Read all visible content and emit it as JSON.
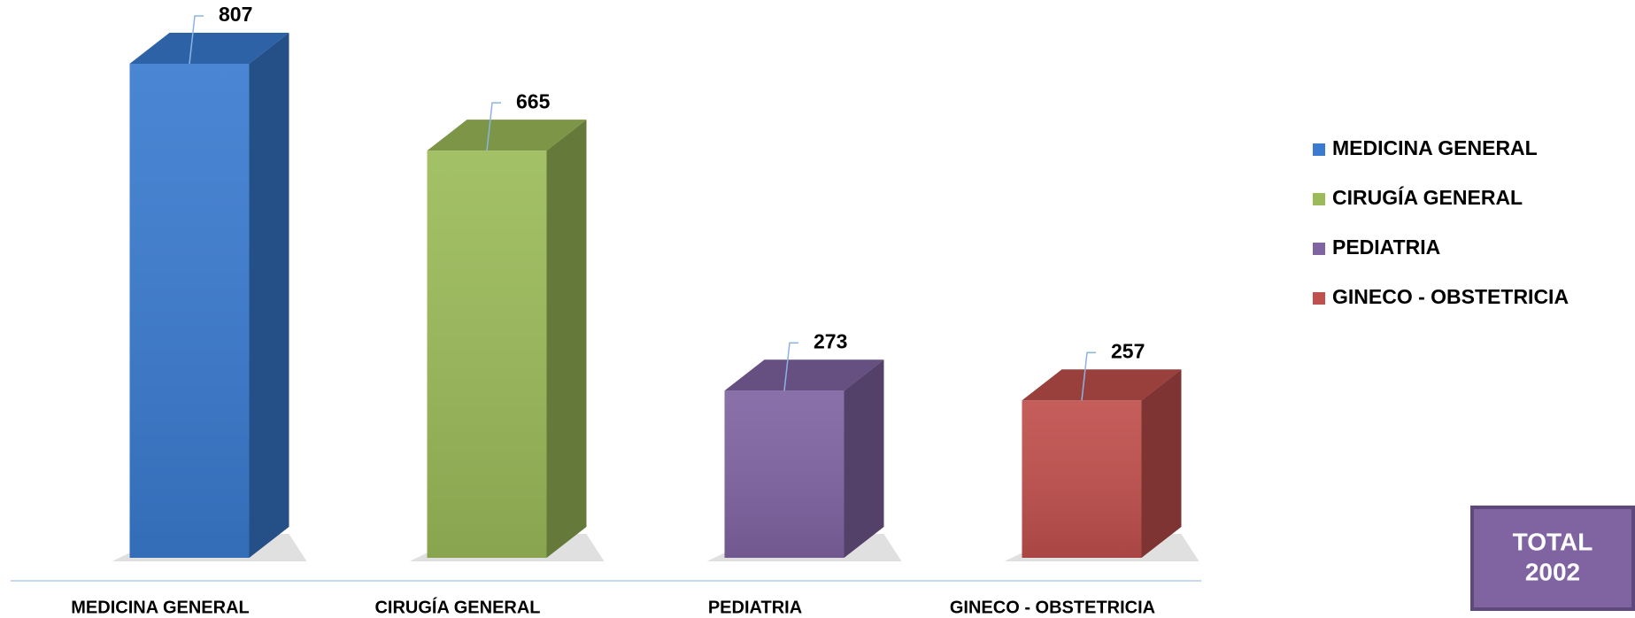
{
  "chart_data": {
    "type": "bar3d",
    "categories": [
      "MEDICINA GENERAL",
      "CIRUGÍA GENERAL",
      "PEDIATRIA",
      "GINECO - OBSTETRICIA"
    ],
    "values": [
      807,
      665,
      273,
      257
    ],
    "colors": [
      "#3a7bd0",
      "#9bbb59",
      "#8064a2",
      "#c0504d"
    ],
    "legend": "right",
    "total_label": "TOTAL",
    "total_value": 2002
  }
}
